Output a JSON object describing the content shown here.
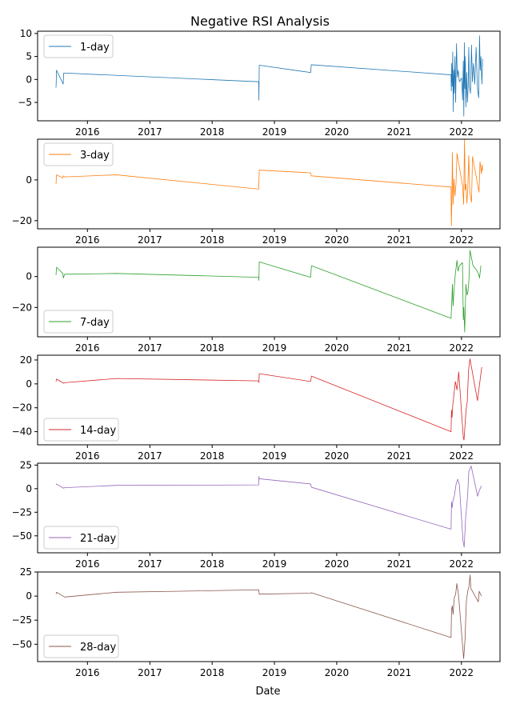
{
  "chart_data": {
    "type": "line",
    "title": "Negative RSI Analysis",
    "xlabel": "Date",
    "x_ticks": [
      "2016",
      "2017",
      "2018",
      "2019",
      "2020",
      "2021",
      "2022"
    ],
    "xlim": [
      "2015-03-15",
      "2022-08-15"
    ],
    "grid": false,
    "panels": [
      {
        "legend": "1-day",
        "legend_loc": "upper left",
        "color": "#1f77b4",
        "ylim": [
          -9,
          10.5
        ],
        "y_ticks": [
          -5,
          0,
          5,
          10
        ],
        "points": [
          [
            "2015-07-01",
            -1.8
          ],
          [
            "2015-07-04",
            2.0
          ],
          [
            "2015-08-12",
            -1.0
          ],
          [
            "2015-08-15",
            1.4
          ],
          [
            "2018-10-01",
            -0.5
          ],
          [
            "2018-10-02",
            -4.5
          ],
          [
            "2018-10-04",
            3.1
          ],
          [
            "2019-08-01",
            1.5
          ],
          [
            "2019-08-05",
            3.2
          ],
          [
            "2021-11-01",
            1.0
          ],
          [
            "2021-11-03",
            -2.5
          ],
          [
            "2021-11-05",
            3.5
          ],
          [
            "2021-11-08",
            -1.5
          ],
          [
            "2021-11-11",
            6.0
          ],
          [
            "2021-11-14",
            -7.0
          ],
          [
            "2021-11-17",
            2.0
          ],
          [
            "2021-11-20",
            -3.0
          ],
          [
            "2021-11-24",
            5.0
          ],
          [
            "2021-11-28",
            -5.0
          ],
          [
            "2021-12-03",
            7.8
          ],
          [
            "2021-12-08",
            0.5
          ],
          [
            "2021-12-13",
            2.0
          ],
          [
            "2021-12-20",
            -0.5
          ],
          [
            "2022-01-02",
            0.3
          ],
          [
            "2022-01-08",
            -4.5
          ],
          [
            "2022-01-12",
            4.0
          ],
          [
            "2022-01-15",
            -8.0
          ],
          [
            "2022-01-18",
            8.0
          ],
          [
            "2022-01-21",
            -2.0
          ],
          [
            "2022-01-24",
            5.0
          ],
          [
            "2022-01-27",
            -6.0
          ],
          [
            "2022-02-01",
            1.5
          ],
          [
            "2022-02-05",
            -5.0
          ],
          [
            "2022-02-09",
            -2.0
          ],
          [
            "2022-02-13",
            7.0
          ],
          [
            "2022-02-17",
            -1.5
          ],
          [
            "2022-02-23",
            -3.0
          ],
          [
            "2022-03-01",
            7.5
          ],
          [
            "2022-03-06",
            -0.5
          ],
          [
            "2022-03-12",
            3.5
          ],
          [
            "2022-03-20",
            -1.0
          ],
          [
            "2022-03-28",
            7.0
          ],
          [
            "2022-04-05",
            -2.0
          ],
          [
            "2022-04-12",
            -4.0
          ],
          [
            "2022-04-17",
            9.5
          ],
          [
            "2022-04-21",
            2.0
          ],
          [
            "2022-04-25",
            5.0
          ],
          [
            "2022-05-01",
            -1.0
          ],
          [
            "2022-05-05",
            4.5
          ]
        ]
      },
      {
        "legend": "3-day",
        "legend_loc": "upper left",
        "color": "#ff7f0e",
        "ylim": [
          -24,
          20
        ],
        "y_ticks": [
          -20,
          0
        ],
        "points": [
          [
            "2015-07-01",
            -2.0
          ],
          [
            "2015-07-04",
            2.5
          ],
          [
            "2015-08-10",
            1.0
          ],
          [
            "2015-08-13",
            2.0
          ],
          [
            "2015-08-20",
            1.5
          ],
          [
            "2016-06-20",
            2.5
          ],
          [
            "2018-10-01",
            -4.5
          ],
          [
            "2018-10-04",
            4.8
          ],
          [
            "2019-08-01",
            3.5
          ],
          [
            "2019-08-05",
            2.0
          ],
          [
            "2021-11-01",
            -3.5
          ],
          [
            "2021-11-03",
            -22.5
          ],
          [
            "2021-11-06",
            -10.0
          ],
          [
            "2021-11-09",
            13.5
          ],
          [
            "2021-11-13",
            -12.0
          ],
          [
            "2021-11-18",
            0.5
          ],
          [
            "2021-11-24",
            -8.0
          ],
          [
            "2021-11-30",
            -2.0
          ],
          [
            "2021-12-06",
            13.0
          ],
          [
            "2022-01-08",
            -3.0
          ],
          [
            "2022-01-14",
            -12.0
          ],
          [
            "2022-01-19",
            20.0
          ],
          [
            "2022-01-23",
            -5.0
          ],
          [
            "2022-01-27",
            -2.0
          ],
          [
            "2022-02-02",
            -11.5
          ],
          [
            "2022-02-07",
            -4.0
          ],
          [
            "2022-02-13",
            12.0
          ],
          [
            "2022-02-19",
            -6.0
          ],
          [
            "2022-03-01",
            -11.0
          ],
          [
            "2022-03-07",
            11.5
          ],
          [
            "2022-04-14",
            -6.0
          ],
          [
            "2022-04-20",
            9.0
          ],
          [
            "2022-04-28",
            3.0
          ],
          [
            "2022-05-02",
            7.5
          ],
          [
            "2022-05-05",
            4.5
          ]
        ]
      },
      {
        "legend": "7-day",
        "legend_loc": "lower left",
        "color": "#2ca02c",
        "ylim": [
          -39,
          19
        ],
        "y_ticks": [
          -20,
          0
        ],
        "points": [
          [
            "2015-07-01",
            1.0
          ],
          [
            "2015-07-04",
            6.0
          ],
          [
            "2015-08-10",
            2.0
          ],
          [
            "2015-08-13",
            -1.0
          ],
          [
            "2015-08-20",
            1.5
          ],
          [
            "2016-06-20",
            2.0
          ],
          [
            "2018-10-01",
            -0.5
          ],
          [
            "2018-10-02",
            -2.5
          ],
          [
            "2018-10-04",
            9.5
          ],
          [
            "2019-08-01",
            -0.5
          ],
          [
            "2019-08-06",
            7.0
          ],
          [
            "2021-11-01",
            -27.0
          ],
          [
            "2021-11-05",
            -18.0
          ],
          [
            "2021-11-09",
            -5.0
          ],
          [
            "2021-11-13",
            -19.0
          ],
          [
            "2021-11-19",
            -8.0
          ],
          [
            "2021-11-26",
            1.5
          ],
          [
            "2021-12-06",
            10.5
          ],
          [
            "2021-12-12",
            3.5
          ],
          [
            "2021-12-20",
            7.0
          ],
          [
            "2022-01-07",
            9.0
          ],
          [
            "2022-01-12",
            -28.0
          ],
          [
            "2022-01-15",
            -20.0
          ],
          [
            "2022-01-20",
            -36.0
          ],
          [
            "2022-01-27",
            -5.0
          ],
          [
            "2022-02-03",
            -12.0
          ],
          [
            "2022-02-08",
            -10.0
          ],
          [
            "2022-02-14",
            -2.0
          ],
          [
            "2022-02-20",
            17.0
          ],
          [
            "2022-03-10",
            7.0
          ],
          [
            "2022-04-01",
            4.0
          ],
          [
            "2022-04-13",
            1.0
          ],
          [
            "2022-04-17",
            -1.0
          ],
          [
            "2022-04-25",
            7.0
          ]
        ]
      },
      {
        "legend": "14-day",
        "legend_loc": "lower left",
        "color": "#d62728",
        "ylim": [
          -51,
          24
        ],
        "y_ticks": [
          -40,
          -20,
          0,
          20
        ],
        "points": [
          [
            "2015-07-01",
            2.0
          ],
          [
            "2015-07-04",
            4.0
          ],
          [
            "2015-08-10",
            1.0
          ],
          [
            "2015-08-14",
            0.5
          ],
          [
            "2015-08-20",
            1.0
          ],
          [
            "2016-06-20",
            4.5
          ],
          [
            "2018-10-01",
            2.5
          ],
          [
            "2018-10-02",
            1.0
          ],
          [
            "2018-10-04",
            8.5
          ],
          [
            "2019-08-01",
            2.0
          ],
          [
            "2019-08-06",
            6.5
          ],
          [
            "2021-11-01",
            -40.0
          ],
          [
            "2021-11-04",
            -22.0
          ],
          [
            "2021-11-07",
            -28.0
          ],
          [
            "2021-11-11",
            -18.0
          ],
          [
            "2021-11-18",
            -9.0
          ],
          [
            "2021-11-26",
            2.0
          ],
          [
            "2021-12-06",
            -5.0
          ],
          [
            "2021-12-16",
            10.0
          ],
          [
            "2022-01-12",
            -45.0
          ],
          [
            "2022-01-16",
            -47.0
          ],
          [
            "2022-01-28",
            -22.0
          ],
          [
            "2022-02-04",
            -15.0
          ],
          [
            "2022-02-12",
            12.0
          ],
          [
            "2022-02-20",
            21.0
          ],
          [
            "2022-04-05",
            -14.0
          ],
          [
            "2022-04-30",
            14.0
          ]
        ]
      },
      {
        "legend": "21-day",
        "legend_loc": "lower left",
        "color": "#9467bd",
        "ylim": [
          -68,
          27
        ],
        "y_ticks": [
          -50,
          -25,
          0,
          25
        ],
        "points": [
          [
            "2015-07-01",
            4.0
          ],
          [
            "2015-07-04",
            5.0
          ],
          [
            "2015-08-14",
            0.5
          ],
          [
            "2015-08-20",
            1.0
          ],
          [
            "2016-06-20",
            3.5
          ],
          [
            "2018-10-01",
            4.0
          ],
          [
            "2018-10-02",
            13.0
          ],
          [
            "2018-10-04",
            10.5
          ],
          [
            "2019-08-01",
            5.0
          ],
          [
            "2019-08-06",
            1.5
          ],
          [
            "2021-11-01",
            -43.0
          ],
          [
            "2021-11-04",
            -14.0
          ],
          [
            "2021-11-08",
            -20.0
          ],
          [
            "2021-11-12",
            -13.0
          ],
          [
            "2021-11-20",
            -8.0
          ],
          [
            "2021-12-01",
            5.0
          ],
          [
            "2021-12-10",
            10.0
          ],
          [
            "2021-12-20",
            4.0
          ],
          [
            "2022-01-10",
            -55.0
          ],
          [
            "2022-01-17",
            -62.0
          ],
          [
            "2022-01-26",
            -30.0
          ],
          [
            "2022-02-06",
            -8.0
          ],
          [
            "2022-02-13",
            18.0
          ],
          [
            "2022-02-27",
            24.0
          ],
          [
            "2022-04-06",
            -8.0
          ],
          [
            "2022-04-16",
            -2.0
          ],
          [
            "2022-04-28",
            3.0
          ]
        ]
      },
      {
        "legend": "28-day",
        "legend_loc": "lower left",
        "color": "#8c564b",
        "ylim": [
          -68,
          25
        ],
        "y_ticks": [
          -50,
          -25,
          0,
          25
        ],
        "points": [
          [
            "2015-07-01",
            2.0
          ],
          [
            "2015-07-04",
            4.0
          ],
          [
            "2015-08-20",
            -1.0
          ],
          [
            "2016-06-20",
            4.0
          ],
          [
            "2017-06-01",
            5.0
          ],
          [
            "2018-10-01",
            6.5
          ],
          [
            "2018-10-04",
            2.0
          ],
          [
            "2019-08-01",
            3.0
          ],
          [
            "2019-08-05",
            3.5
          ],
          [
            "2021-11-01",
            -43.0
          ],
          [
            "2021-11-04",
            -14.0
          ],
          [
            "2021-11-08",
            -10.0
          ],
          [
            "2021-11-13",
            -19.0
          ],
          [
            "2021-11-20",
            -2.0
          ],
          [
            "2021-11-28",
            2.0
          ],
          [
            "2021-12-05",
            13.0
          ],
          [
            "2021-12-15",
            1.0
          ],
          [
            "2022-01-14",
            -65.0
          ],
          [
            "2022-01-22",
            -45.0
          ],
          [
            "2022-01-30",
            -5.0
          ],
          [
            "2022-02-07",
            5.0
          ],
          [
            "2022-02-14",
            10.0
          ],
          [
            "2022-02-21",
            22.0
          ],
          [
            "2022-02-25",
            8.0
          ],
          [
            "2022-04-10",
            -6.0
          ],
          [
            "2022-04-15",
            5.0
          ],
          [
            "2022-04-28",
            0.0
          ]
        ]
      }
    ]
  }
}
